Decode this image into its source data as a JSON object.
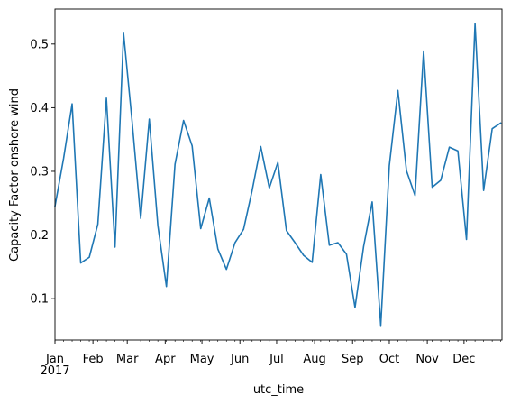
{
  "chart_data": {
    "type": "line",
    "xlabel": "utc_time",
    "ylabel": "Capacity Factor onshore wind",
    "xlim": [
      "2017-01-01",
      "2018-01-01"
    ],
    "ylim": [
      0.035,
      0.555
    ],
    "grid": false,
    "x_ticks": [
      {
        "label": "Jan",
        "date": "2017-01-01"
      },
      {
        "label": "Feb",
        "date": "2017-02-01"
      },
      {
        "label": "Mar",
        "date": "2017-03-01"
      },
      {
        "label": "Apr",
        "date": "2017-04-01"
      },
      {
        "label": "May",
        "date": "2017-05-01"
      },
      {
        "label": "Jun",
        "date": "2017-06-01"
      },
      {
        "label": "Jul",
        "date": "2017-07-01"
      },
      {
        "label": "Aug",
        "date": "2017-08-01"
      },
      {
        "label": "Sep",
        "date": "2017-09-01"
      },
      {
        "label": "Oct",
        "date": "2017-10-01"
      },
      {
        "label": "Nov",
        "date": "2017-11-01"
      },
      {
        "label": "Dec",
        "date": "2017-12-01"
      }
    ],
    "year_label": "2017",
    "y_ticks": [
      0.1,
      0.2,
      0.3,
      0.4,
      0.5
    ],
    "color": "#1f77b4",
    "series": [
      {
        "x": [
          "2017-01-01",
          "2017-01-08",
          "2017-01-15",
          "2017-01-22",
          "2017-01-29",
          "2017-02-05",
          "2017-02-12",
          "2017-02-19",
          "2017-02-26",
          "2017-03-05",
          "2017-03-12",
          "2017-03-19",
          "2017-03-26",
          "2017-04-02",
          "2017-04-09",
          "2017-04-16",
          "2017-04-23",
          "2017-04-30",
          "2017-05-07",
          "2017-05-14",
          "2017-05-21",
          "2017-05-28",
          "2017-06-04",
          "2017-06-11",
          "2017-06-18",
          "2017-06-25",
          "2017-07-02",
          "2017-07-09",
          "2017-07-16",
          "2017-07-23",
          "2017-07-30",
          "2017-08-06",
          "2017-08-13",
          "2017-08-20",
          "2017-08-27",
          "2017-09-03",
          "2017-09-10",
          "2017-09-17",
          "2017-09-24",
          "2017-10-01",
          "2017-10-08",
          "2017-10-15",
          "2017-10-22",
          "2017-10-29",
          "2017-11-05",
          "2017-11-12",
          "2017-11-19",
          "2017-11-26",
          "2017-12-03",
          "2017-12-10",
          "2017-12-17",
          "2017-12-24",
          "2017-12-31"
        ],
        "values": [
          0.245,
          0.32,
          0.406,
          0.156,
          0.165,
          0.217,
          0.415,
          0.181,
          0.517,
          0.378,
          0.226,
          0.382,
          0.215,
          0.119,
          0.311,
          0.38,
          0.34,
          0.21,
          0.258,
          0.178,
          0.146,
          0.188,
          0.209,
          0.27,
          0.339,
          0.274,
          0.314,
          0.207,
          0.188,
          0.168,
          0.157,
          0.295,
          0.184,
          0.188,
          0.17,
          0.086,
          0.182,
          0.252,
          0.058,
          0.309,
          0.427,
          0.301,
          0.262,
          0.489,
          0.275,
          0.286,
          0.338,
          0.332,
          0.193,
          0.532,
          0.27,
          0.367,
          0.376
        ]
      }
    ]
  }
}
